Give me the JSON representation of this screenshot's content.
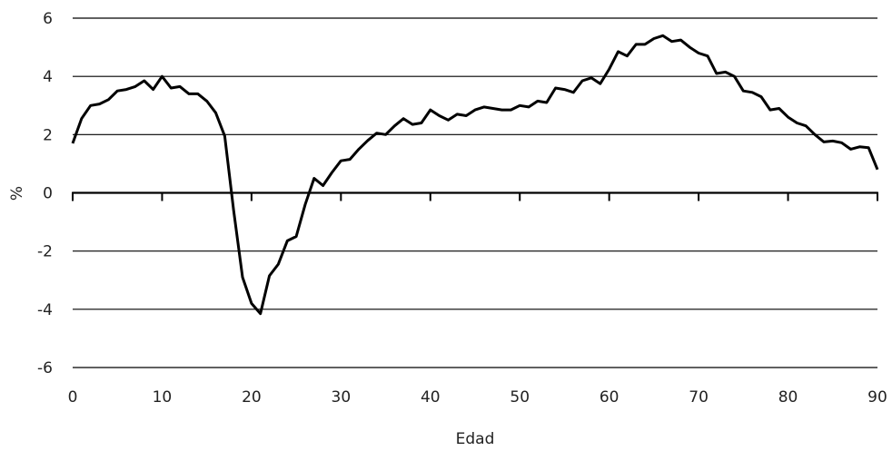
{
  "chart_data": {
    "type": "line",
    "title": "",
    "xlabel": "Edad",
    "ylabel": "%",
    "xlim": [
      0,
      90
    ],
    "ylim": [
      -6,
      6
    ],
    "x_ticks": [
      0,
      10,
      20,
      30,
      40,
      50,
      60,
      70,
      80,
      90
    ],
    "y_ticks": [
      -6,
      -4,
      -2,
      0,
      2,
      4,
      6
    ],
    "grid": "horizontal",
    "legend": "none",
    "series": [
      {
        "color": "#000000",
        "x": [
          0,
          1,
          2,
          3,
          4,
          5,
          6,
          7,
          8,
          9,
          10,
          11,
          12,
          13,
          14,
          15,
          16,
          17,
          18,
          19,
          20,
          21,
          22,
          23,
          24,
          25,
          26,
          27,
          28,
          29,
          30,
          31,
          32,
          33,
          34,
          35,
          36,
          37,
          38,
          39,
          40,
          41,
          42,
          43,
          44,
          45,
          46,
          47,
          48,
          49,
          50,
          51,
          52,
          53,
          54,
          55,
          56,
          57,
          58,
          59,
          60,
          61,
          62,
          63,
          64,
          65,
          66,
          67,
          68,
          69,
          70,
          71,
          72,
          73,
          74,
          75,
          76,
          77,
          78,
          79,
          80,
          81,
          82,
          83,
          84,
          85,
          86,
          87,
          88,
          89,
          90
        ],
        "y": [
          1.7,
          2.55,
          3.0,
          3.05,
          3.2,
          3.5,
          3.55,
          3.65,
          3.85,
          3.55,
          4.0,
          3.6,
          3.65,
          3.4,
          3.4,
          3.15,
          2.75,
          1.95,
          -0.6,
          -2.9,
          -3.8,
          -4.15,
          -2.85,
          -2.45,
          -1.65,
          -1.5,
          -0.4,
          0.5,
          0.25,
          0.7,
          1.1,
          1.15,
          1.5,
          1.8,
          2.05,
          2.0,
          2.3,
          2.55,
          2.35,
          2.4,
          2.85,
          2.65,
          2.5,
          2.7,
          2.65,
          2.85,
          2.95,
          2.9,
          2.85,
          2.85,
          3.0,
          2.95,
          3.15,
          3.1,
          3.6,
          3.55,
          3.45,
          3.85,
          3.95,
          3.75,
          4.25,
          4.85,
          4.7,
          5.1,
          5.1,
          5.3,
          5.4,
          5.2,
          5.25,
          5.0,
          4.8,
          4.7,
          4.1,
          4.15,
          4.0,
          3.5,
          3.45,
          3.3,
          2.85,
          2.9,
          2.6,
          2.4,
          2.3,
          2.0,
          1.75,
          1.78,
          1.72,
          1.5,
          1.58,
          1.55,
          0.8
        ]
      }
    ]
  }
}
